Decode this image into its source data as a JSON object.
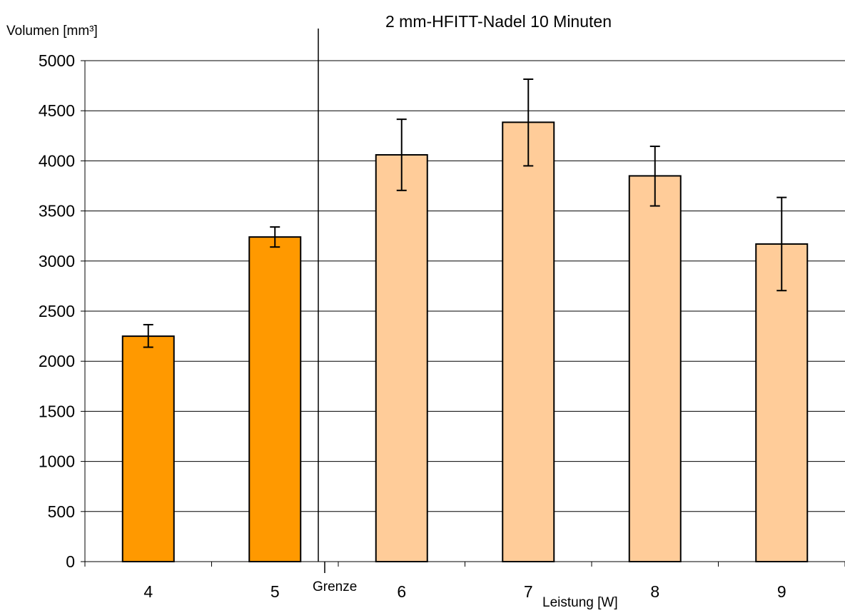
{
  "chart_data": {
    "type": "bar",
    "title": "2 mm-HFITT-Nadel 10 Minuten",
    "ylabel": "Volumen [mm³]",
    "xlabel": "Leistung [W]",
    "categories": [
      "4",
      "5",
      "6",
      "7",
      "8",
      "9"
    ],
    "values": [
      2250,
      3240,
      4060,
      4385,
      3850,
      3170
    ],
    "error_low": [
      2140,
      3140,
      3705,
      3950,
      3550,
      2705
    ],
    "error_high": [
      2365,
      3340,
      4415,
      4815,
      4145,
      3635
    ],
    "bar_colors": [
      "#ff9900",
      "#ff9900",
      "#ffcc99",
      "#ffcc99",
      "#ffcc99",
      "#ffcc99"
    ],
    "ylim": [
      0,
      5000
    ],
    "yticks": [
      0,
      500,
      1000,
      1500,
      2000,
      2500,
      3000,
      3500,
      4000,
      4500,
      5000
    ],
    "grid": "horizontal",
    "divider_label": "Grenze",
    "divider_after_category": "5"
  }
}
